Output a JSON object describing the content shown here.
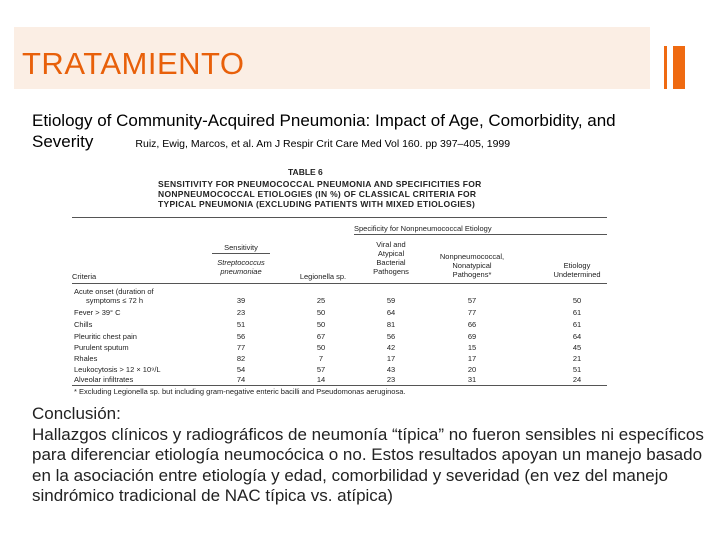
{
  "slide": {
    "title": "TRATAMIENTO",
    "subtitle": "Etiology of Community-Acquired Pneumonia: Impact of Age, Comorbidity, and Severity",
    "citation": "Ruiz, Ewig, Marcos, et al. Am J Respir Crit Care Med Vol 160. pp 397–405, 1999",
    "accent_color": "#e8600a",
    "title_bg_color": "#fbeee4"
  },
  "table": {
    "number": "TABLE 6",
    "title_lines": [
      "SENSITIVITY FOR PNEUMOCOCCAL PNEUMONIA AND SPECIFICITIES FOR",
      "NONPNEUMOCOCCAL ETIOLOGIES (IN %) OF CLASSICAL CRITERIA FOR",
      "TYPICAL PNEUMONIA (EXCLUDING PATIENTS WITH MIXED ETIOLOGIES)"
    ],
    "sensitivity_header": "Sensitivity",
    "specificity_header": "Specificity for Nonpneumococcal Etiology",
    "columns": {
      "criteria": "Criteria",
      "strep_1": "Streptococcus",
      "strep_2": "pneumoniae",
      "legionella": "Legionella sp.",
      "viral_1": "Viral and",
      "viral_2": "Atypical",
      "viral_3": "Bacterial",
      "viral_4": "Pathogens",
      "nonpneumo_1": "Nonpneumococcal,",
      "nonpneumo_2": "Nonatypical",
      "nonpneumo_3": "Pathogens*",
      "etiology_1": "Etiology",
      "etiology_2": "Undetermined"
    },
    "rows": [
      {
        "criteria_1": "Acute onset (duration of",
        "criteria_2": "symptoms ≤ 72 h",
        "values": [
          "39",
          "25",
          "59",
          "57",
          "50"
        ]
      },
      {
        "criteria_1": "Fever > 39° C",
        "values": [
          "23",
          "50",
          "64",
          "77",
          "61"
        ]
      },
      {
        "criteria_1": "Chills",
        "values": [
          "51",
          "50",
          "81",
          "66",
          "61"
        ]
      },
      {
        "criteria_1": "Pleuritic chest pain",
        "values": [
          "56",
          "67",
          "56",
          "69",
          "64"
        ]
      },
      {
        "criteria_1": "Purulent sputum",
        "values": [
          "77",
          "50",
          "42",
          "15",
          "45"
        ]
      },
      {
        "criteria_1": "Rhales",
        "values": [
          "82",
          "7",
          "17",
          "17",
          "21"
        ]
      },
      {
        "criteria_1": "Leukocytosis > 12 × 10⁹/L",
        "values": [
          "54",
          "57",
          "43",
          "20",
          "51"
        ]
      },
      {
        "criteria_1": "Alveolar infiltrates",
        "values": [
          "74",
          "14",
          "23",
          "31",
          "24"
        ]
      }
    ],
    "footnote": "* Excluding Legionella sp. but including gram-negative enteric bacilli and Pseudomonas aeruginosa."
  },
  "conclusion": {
    "heading": "Conclusión:",
    "body": "Hallazgos clínicos y radiográficos de neumonía “típica” no fueron sensibles ni específicos para diferenciar etiología neumocócica o no. Estos resultados apoyan un manejo basado en la asociación entre etiología y edad, comorbilidad y severidad (en vez del manejo sindrómico tradicional de NAC típica vs. atípica)"
  }
}
